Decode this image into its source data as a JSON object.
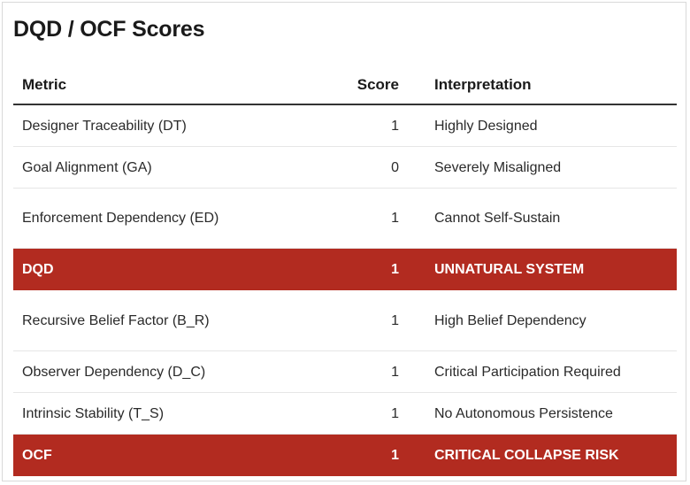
{
  "title": "DQD / OCF Scores",
  "table": {
    "headers": {
      "metric": "Metric",
      "score": "Score",
      "interpretation": "Interpretation"
    },
    "rows": [
      {
        "metric": "Designer Traceability (DT)",
        "score": "1",
        "interpretation": "Highly Designed"
      },
      {
        "metric": "Goal Alignment (GA)",
        "score": "0",
        "interpretation": "Severely Misaligned"
      },
      {
        "metric": "Enforcement Dependency (ED)",
        "score": "1",
        "interpretation": "Cannot Self-Sustain"
      },
      {
        "metric": "DQD",
        "score": "1",
        "interpretation": "UNNATURAL SYSTEM"
      },
      {
        "metric": "Recursive Belief Factor (B_R)",
        "score": "1",
        "interpretation": "High Belief Dependency"
      },
      {
        "metric": "Observer Dependency (D_C)",
        "score": "1",
        "interpretation": "Critical Participation Required"
      },
      {
        "metric": "Intrinsic Stability (T_S)",
        "score": "1",
        "interpretation": "No Autonomous Persistence"
      },
      {
        "metric": "OCF",
        "score": "1",
        "interpretation": "CRITICAL COLLAPSE RISK"
      }
    ]
  },
  "colors": {
    "highlight_row": "#b22b20",
    "highlight_text": "#ffffff"
  }
}
